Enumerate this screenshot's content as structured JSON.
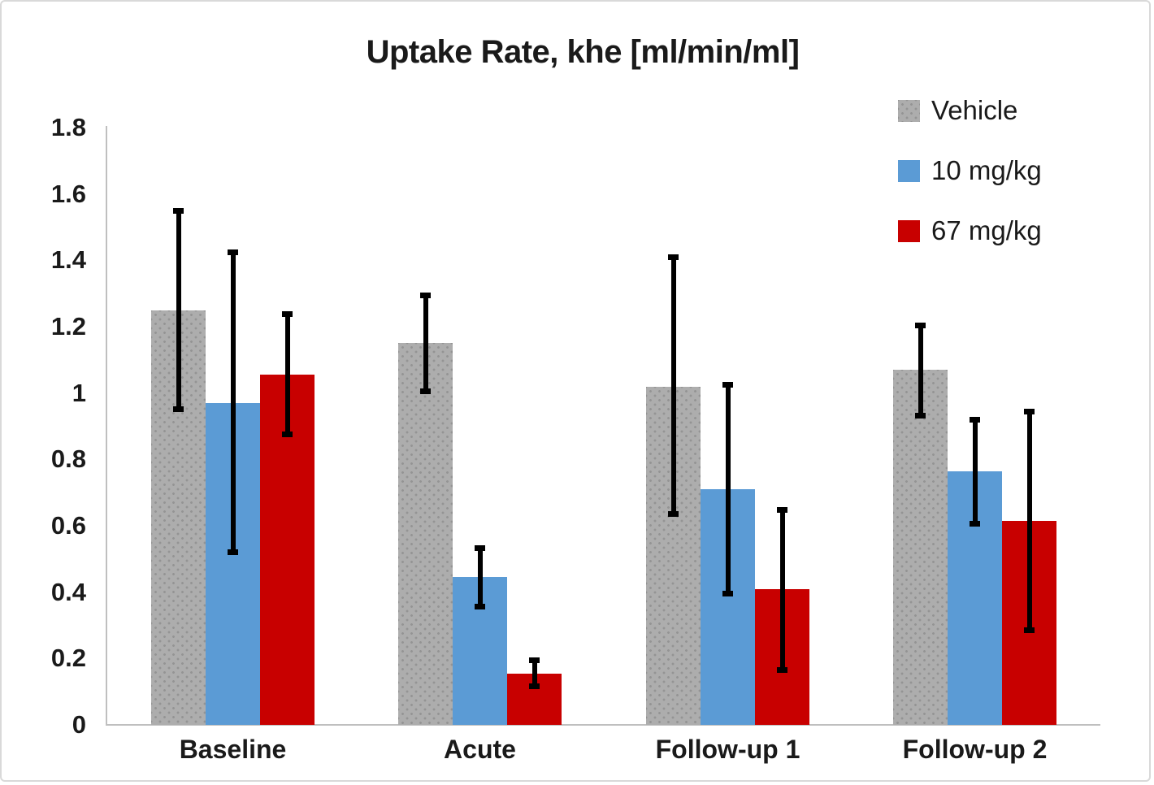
{
  "chart_data": {
    "type": "bar",
    "title": "Uptake Rate, khe [ml/min/ml]",
    "categories": [
      "Baseline",
      "Acute",
      "Follow-up 1",
      "Follow-up 2"
    ],
    "series": [
      {
        "name": "Vehicle",
        "color": "#ADADAD",
        "pattern": "dots",
        "values": [
          1.25,
          1.15,
          1.02,
          1.07
        ],
        "error_low": [
          0.945,
          1.0,
          0.63,
          0.925
        ],
        "error_high": [
          1.555,
          1.3,
          1.415,
          1.21
        ]
      },
      {
        "name": "10 mg/kg",
        "color": "#5B9BD5",
        "pattern": "solid",
        "values": [
          0.97,
          0.445,
          0.71,
          0.765
        ],
        "error_low": [
          0.515,
          0.35,
          0.39,
          0.6
        ],
        "error_high": [
          1.43,
          0.54,
          1.03,
          0.925
        ]
      },
      {
        "name": "67 mg/kg",
        "color": "#C80000",
        "pattern": "solid",
        "values": [
          1.055,
          0.155,
          0.41,
          0.615
        ],
        "error_low": [
          0.87,
          0.11,
          0.16,
          0.28
        ],
        "error_high": [
          1.245,
          0.2,
          0.655,
          0.95
        ]
      }
    ],
    "xlabel": "",
    "ylabel": "",
    "ylim": [
      0,
      1.8
    ],
    "ytick_labels": [
      "0",
      "0.2",
      "0.4",
      "0.6",
      "0.8",
      "1",
      "1.2",
      "1.4",
      "1.6",
      "1.8"
    ],
    "grid": false,
    "legend_position": "top-right",
    "error_bars": true,
    "colors": {
      "axis_line": "#BFBFBF",
      "error_bar": "#000000",
      "text": "#1A1A1A"
    }
  }
}
